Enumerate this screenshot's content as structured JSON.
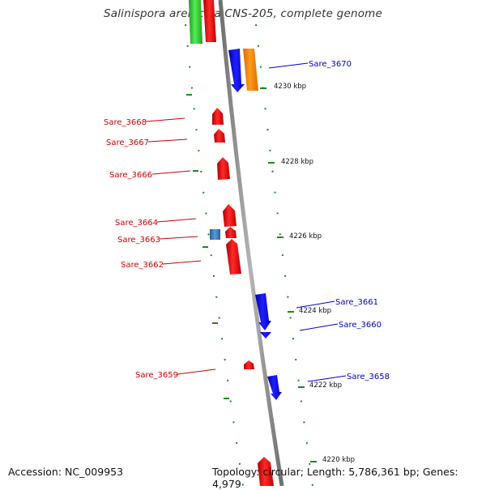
{
  "title": "Salinispora arenicola CNS-205, complete genome",
  "footer": {
    "accession": "Accession: NC_009953",
    "topology": "Topology: circular; Length: 5,786,361 bp; Genes: 4,979"
  },
  "ticks": [
    {
      "label": "4230 kbp"
    },
    {
      "label": "4228 kbp"
    },
    {
      "label": "4226 kbp"
    },
    {
      "label": "4224 kbp"
    },
    {
      "label": "4222 kbp"
    },
    {
      "label": "4220 kbp"
    }
  ],
  "genes": [
    {
      "name": "Sare_3670",
      "strand": "reverse",
      "color": "#0000ee"
    },
    {
      "name": "Sare_3668",
      "strand": "forward",
      "color": "#ee0000"
    },
    {
      "name": "Sare_3667",
      "strand": "forward",
      "color": "#ee0000"
    },
    {
      "name": "Sare_3666",
      "strand": "forward",
      "color": "#ee0000"
    },
    {
      "name": "Sare_3664",
      "strand": "forward",
      "color": "#ee0000"
    },
    {
      "name": "Sare_3663",
      "strand": "forward",
      "color": "#ee0000"
    },
    {
      "name": "Sare_3662",
      "strand": "forward",
      "color": "#ee0000"
    },
    {
      "name": "Sare_3661",
      "strand": "reverse",
      "color": "#0000ee"
    },
    {
      "name": "Sare_3660",
      "strand": "reverse",
      "color": "#0000ee"
    },
    {
      "name": "Sare_3659",
      "strand": "forward",
      "color": "#ee0000"
    },
    {
      "name": "Sare_3658",
      "strand": "reverse",
      "color": "#0000ee"
    }
  ],
  "colors": {
    "forward_gene": "#ee0000",
    "reverse_gene": "#0000ee",
    "rna_feature": "#ff8c00",
    "other_feature_green": "#33cc33",
    "other_feature_steel": "#3b7bb5",
    "backbone": "#8a8a8a",
    "tick_marks": "#1a8a1a"
  }
}
